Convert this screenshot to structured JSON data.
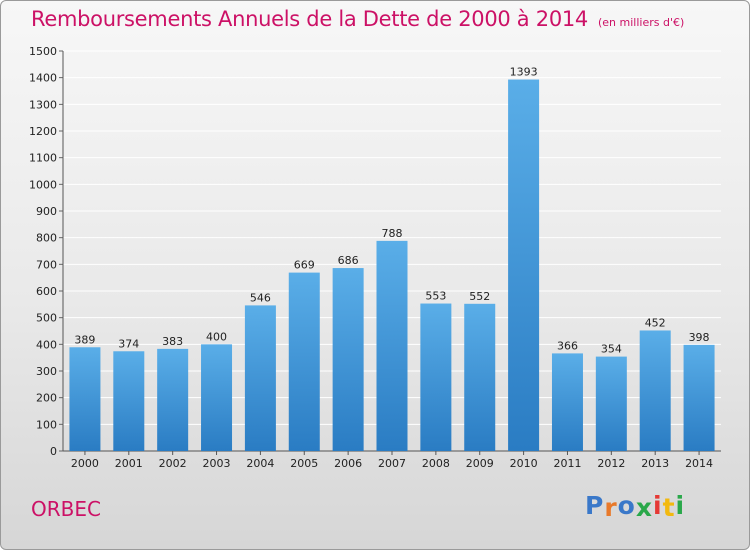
{
  "title": "Remboursements Annuels de la Dette de 2000 à 2014",
  "unit": "(en milliers d'€)",
  "commune": "ORBEC",
  "brand": "Proxiti",
  "colors": {
    "title": "#cc1166",
    "bar_top": "#5aaee8",
    "bar_bottom": "#2a7cc3",
    "brand_letters": [
      "#3a78c9",
      "#e8792a",
      "#3a78c9",
      "#2aa84a",
      "#e53935",
      "#f2b90f",
      "#2aa84a"
    ]
  },
  "chart_data": {
    "type": "bar",
    "title": "Remboursements Annuels de la Dette de 2000 à 2014",
    "subtitle": "(en milliers d'€)",
    "categories": [
      "2000",
      "2001",
      "2002",
      "2003",
      "2004",
      "2005",
      "2006",
      "2007",
      "2008",
      "2009",
      "2010",
      "2011",
      "2012",
      "2013",
      "2014"
    ],
    "values": [
      389,
      374,
      383,
      400,
      546,
      669,
      686,
      788,
      553,
      552,
      1393,
      366,
      354,
      452,
      398
    ],
    "ylim": [
      0,
      1500
    ],
    "yticks": [
      0,
      100,
      200,
      300,
      400,
      500,
      600,
      700,
      800,
      900,
      1000,
      1100,
      1200,
      1300,
      1400,
      1500
    ],
    "grid": true,
    "legend": "none"
  }
}
